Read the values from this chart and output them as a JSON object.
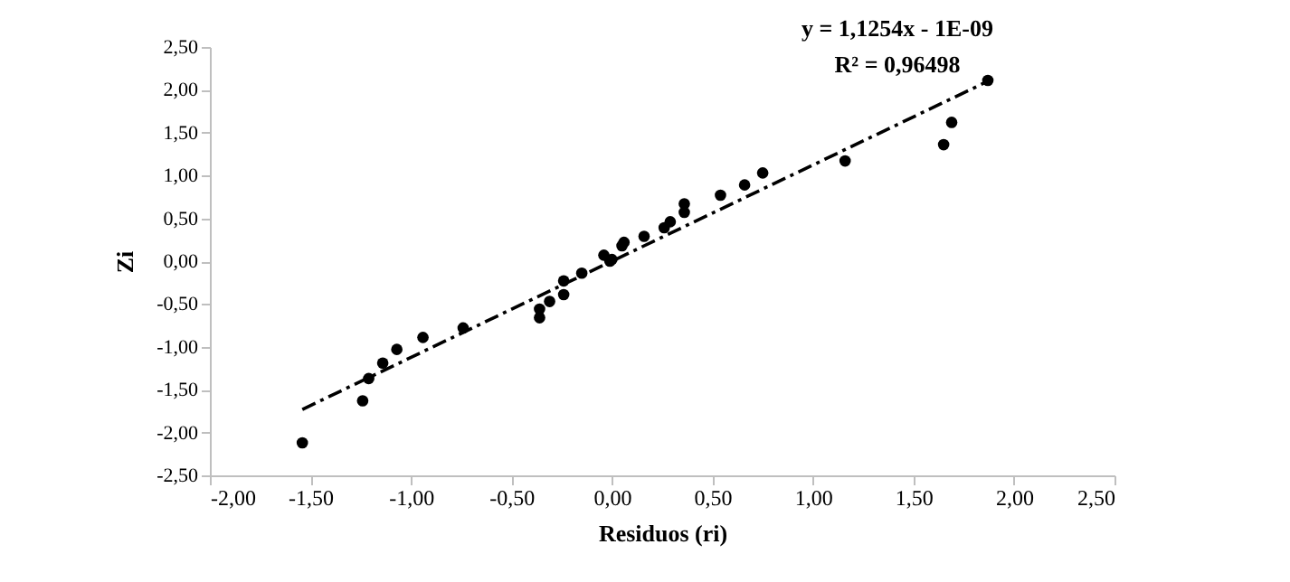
{
  "chart_data": {
    "type": "scatter",
    "xlabel": "Residuos (ri)",
    "ylabel": "Zi",
    "annotations": [
      "y = 1,1254x - 1E-09",
      "R² = 0,96498"
    ],
    "xlim": [
      -2,
      2.5
    ],
    "ylim": [
      -2.5,
      2.5
    ],
    "xticks": [
      {
        "value": -2,
        "label": "-2,00"
      },
      {
        "value": -1.5,
        "label": "-1,50"
      },
      {
        "value": -1,
        "label": "-1,00"
      },
      {
        "value": -0.5,
        "label": "-0,50"
      },
      {
        "value": 0,
        "label": "0,00"
      },
      {
        "value": 0.5,
        "label": "0,50"
      },
      {
        "value": 1,
        "label": "1,00"
      },
      {
        "value": 1.5,
        "label": "1,50"
      },
      {
        "value": 2,
        "label": "2,00"
      },
      {
        "value": 2.5,
        "label": "2,50"
      }
    ],
    "yticks": [
      {
        "value": -2.5,
        "label": "-2,50"
      },
      {
        "value": -2,
        "label": "-2,00"
      },
      {
        "value": -1.5,
        "label": "-1,50"
      },
      {
        "value": -1,
        "label": "-1,00"
      },
      {
        "value": -0.5,
        "label": "-0,50"
      },
      {
        "value": 0,
        "label": "0,00"
      },
      {
        "value": 0.5,
        "label": "0,50"
      },
      {
        "value": 1,
        "label": "1,00"
      },
      {
        "value": 1.5,
        "label": "1,50"
      },
      {
        "value": 2,
        "label": "2,00"
      },
      {
        "value": 2.5,
        "label": "2,50"
      }
    ],
    "grid": false,
    "series": [
      {
        "color": "#000000",
        "marker": "circle",
        "x": [
          -1.54,
          -1.24,
          -1.21,
          -1.14,
          -1.07,
          -0.94,
          -0.74,
          -0.36,
          -0.36,
          -0.31,
          -0.24,
          -0.24,
          -0.15,
          -0.04,
          -0.01,
          0.0,
          0.05,
          0.06,
          0.16,
          0.26,
          0.29,
          0.36,
          0.36,
          0.54,
          0.66,
          0.75,
          1.16,
          1.65,
          1.69,
          1.87
        ],
        "values": [
          -2.12,
          -1.63,
          -1.37,
          -1.19,
          -1.03,
          -0.89,
          -0.78,
          -0.56,
          -0.66,
          -0.47,
          -0.23,
          -0.39,
          -0.14,
          0.07,
          0.0,
          0.02,
          0.18,
          0.22,
          0.29,
          0.39,
          0.46,
          0.57,
          0.67,
          0.77,
          0.89,
          1.03,
          1.17,
          1.36,
          1.62,
          2.11
        ]
      },
      {
        "type": "line",
        "color": "#000000",
        "marker": "none",
        "line_style": "dashed",
        "x": [
          -1.54,
          1.87
        ],
        "values": [
          -1.73,
          2.1
        ]
      }
    ]
  }
}
